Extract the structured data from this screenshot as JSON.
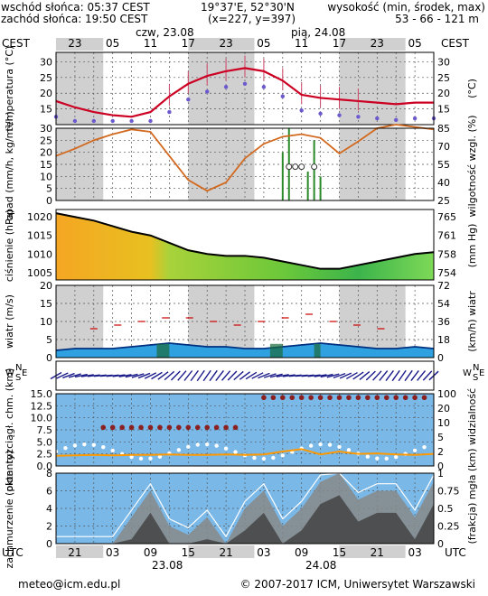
{
  "header": {
    "sunrise": "wschód słońca: 05:37 CEST",
    "sunset": "zachód słońca: 19:50 CEST",
    "coords": "19°37'E, 52°30'N",
    "grid": "(x=227, y=397)",
    "elev_label": "wysokość (min, środek, max)",
    "elev_value": "53 - 66 - 121 m",
    "tz_left": "CEST",
    "tz_right": "CEST",
    "date1": "czw, 23.08",
    "date2": "pią, 24.08",
    "cest_hours": [
      "23",
      "05",
      "11",
      "17",
      "23",
      "05",
      "11",
      "17",
      "23",
      "05"
    ]
  },
  "footer": {
    "utc_left": "UTC",
    "utc_right": "UTC",
    "utc_hours": [
      "21",
      "03",
      "09",
      "15",
      "21",
      "03",
      "09",
      "15",
      "21",
      "03"
    ],
    "date1": "23.08",
    "date2": "24.08",
    "email": "meteo@icm.edu.pl",
    "copyright": "© 2007-2017 ICM, Uniwersytet Warszawski"
  },
  "colors": {
    "temp_line": "#cc0022",
    "dew_points": "#6a5acd",
    "humidity_line": "#d2691e",
    "pressure_line": "#000000",
    "wind_fill": "#0077cc",
    "visibility_line": "#ff9900",
    "cloud_dark": "#444444",
    "panel_bg": "#7ab8e8",
    "night_shade": "#d0d0d0"
  },
  "chart_data": [
    {
      "type": "line",
      "panel": "temperature",
      "ylabel_left": "temperatura (°C)",
      "ylabel_right": "(°C)",
      "ylim": [
        10,
        33
      ],
      "ticks": [
        15,
        20,
        25,
        30
      ],
      "x_hours": [
        0,
        3,
        6,
        9,
        12,
        15,
        18,
        21,
        24,
        27,
        30,
        33,
        36,
        39,
        42,
        45,
        48,
        51,
        54,
        57,
        60
      ],
      "series": [
        {
          "values": [
            17.5,
            15.5,
            14,
            13,
            12.5,
            14,
            19,
            23,
            25.5,
            27,
            28,
            27,
            24,
            19.5,
            18.5,
            18,
            17.5,
            17,
            16.5,
            17,
            17
          ]
        }
      ]
    },
    {
      "type": "line",
      "panel": "precipitation",
      "ylabel_left": "opad (mm/h, kg/m²/h)",
      "ylabel_right": "wilgotność wzgl. (%)",
      "ylim_left": [
        0,
        30
      ],
      "ticks_left": [
        0,
        5,
        10,
        15,
        20,
        25,
        30
      ],
      "ticks_right": [
        25,
        40,
        55,
        70,
        85
      ],
      "humidity": [
        62,
        68,
        75,
        80,
        84,
        82,
        62,
        42,
        33,
        40,
        60,
        72,
        78,
        80,
        77,
        64,
        74,
        85,
        88,
        86,
        84
      ]
    },
    {
      "type": "area",
      "panel": "pressure",
      "ylabel_left": "ciśnienie (hPa)",
      "ylabel_right": "(mm Hg)",
      "ylim": [
        1003,
        1022
      ],
      "ticks_left": [
        1005,
        1010,
        1015,
        1020
      ],
      "ticks_right": [
        754,
        758,
        761,
        765
      ],
      "values": [
        1021,
        1020,
        1019,
        1017.5,
        1016,
        1015,
        1013,
        1011,
        1010,
        1009.5,
        1009.5,
        1009,
        1008,
        1007,
        1006,
        1006,
        1007,
        1008,
        1009,
        1010,
        1010.5
      ]
    },
    {
      "type": "area",
      "panel": "wind",
      "ylabel_left": "wiatr (m/s)",
      "ylabel_right": "(km/h) wiatr",
      "ylim": [
        0,
        20
      ],
      "ticks_left": [
        0,
        5,
        10,
        15,
        20
      ],
      "ticks_right": [
        0,
        18,
        36,
        54,
        72
      ],
      "speed": [
        2,
        2.5,
        2.5,
        2.5,
        3,
        3.5,
        4,
        3.5,
        3,
        3,
        2.5,
        2.5,
        3,
        3.5,
        4,
        3.5,
        3,
        2.5,
        2.5,
        3,
        2.5
      ],
      "gust_marks_y": [
        8,
        9,
        10,
        11,
        11,
        10,
        9,
        10,
        11,
        12,
        10,
        9,
        8
      ]
    },
    {
      "type": "line",
      "panel": "visibility",
      "ylabel_left": "pion. rozciągł. chm. (km)",
      "ylabel_right": "(km) widzialność",
      "ylim": [
        0,
        15
      ],
      "ticks_left": [
        0.0,
        2.5,
        5.0,
        7.5,
        10.0,
        12.5,
        15.0
      ],
      "ticks_right": [
        0,
        2,
        5,
        10,
        20,
        100
      ],
      "visibility": [
        2.1,
        2.2,
        2.3,
        2.2,
        2.3,
        2.3,
        2.4,
        2.3,
        2.3,
        2.4,
        2.3,
        2.4,
        3.0,
        3.5,
        2.4,
        3.0,
        2.5,
        2.6,
        2.4,
        2.3,
        2.5
      ]
    },
    {
      "type": "area",
      "panel": "clouds",
      "ylabel_left": "zachmurzenie (oktanty)",
      "ylabel_right": "(frakcja) mgła",
      "ylim": [
        0,
        8
      ],
      "ticks_left": [
        0,
        2,
        4,
        6,
        8
      ],
      "ticks_right": [
        "0",
        "0.25",
        "0.5",
        "0.75",
        "1"
      ],
      "cloud": [
        0,
        0,
        0,
        0,
        3,
        6,
        2,
        1,
        3,
        0,
        4,
        6,
        2,
        4,
        7,
        8,
        5,
        6,
        6,
        3,
        7
      ]
    }
  ]
}
